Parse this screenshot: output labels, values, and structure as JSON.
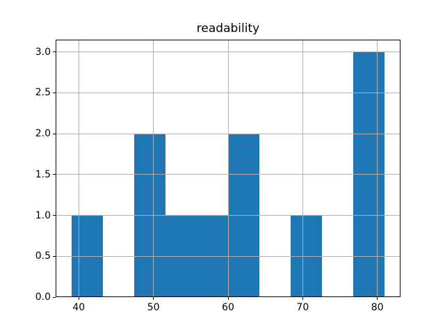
{
  "figure": {
    "background": "#ffffff"
  },
  "chart_data": {
    "type": "bar",
    "subtype": "histogram",
    "title": "readability",
    "xlabel": "",
    "ylabel": "",
    "bin_edges": [
      39.0,
      43.2,
      47.4,
      51.6,
      55.8,
      60.0,
      64.2,
      68.4,
      72.6,
      76.8,
      81.0
    ],
    "counts": [
      1,
      0,
      2,
      1,
      1,
      2,
      0,
      1,
      0,
      3
    ],
    "x_ticks": [
      40,
      50,
      60,
      70,
      80
    ],
    "y_ticks": [
      0.0,
      0.5,
      1.0,
      1.5,
      2.0,
      2.5,
      3.0
    ],
    "y_tick_decimals": 1,
    "xlim": [
      36.9,
      83.1
    ],
    "ylim": [
      0,
      3.15
    ],
    "grid": true,
    "grid_above_bars": true,
    "legend_position": "none",
    "bar_color": "#1f77b4",
    "grid_color": "#b0b0b0",
    "spine_color": "#000000",
    "text_color": "#000000"
  }
}
